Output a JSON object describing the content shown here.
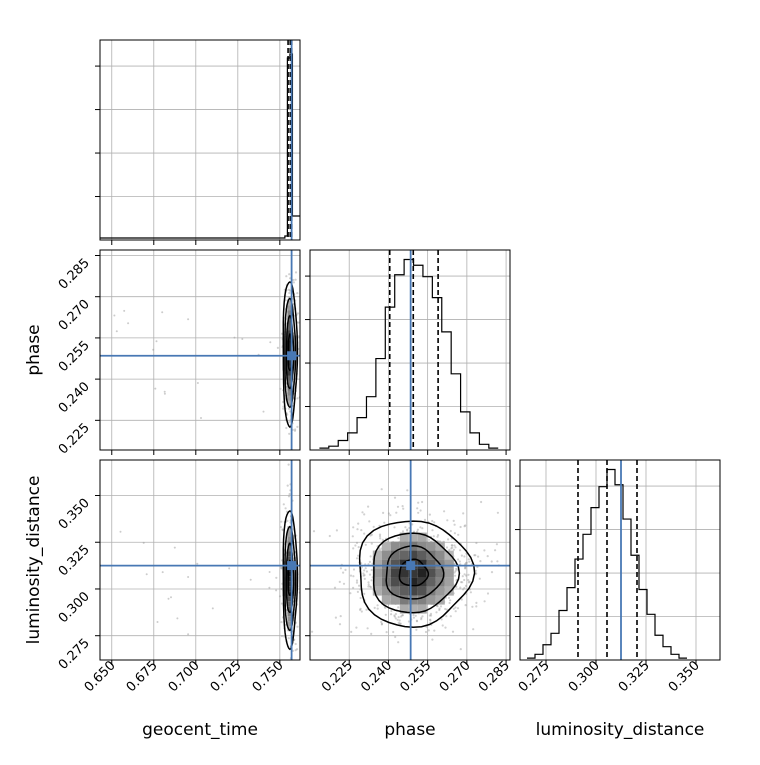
{
  "chart_data": {
    "type": "corner",
    "parameters": [
      "geocent_time",
      "phase",
      "luminosity_distance"
    ],
    "truths": {
      "geocent_time": 0.757,
      "phase": 0.2485,
      "luminosity_distance": 0.3125
    },
    "colors": {
      "truth": "#4878b4",
      "hist": "#000000",
      "grid": "#b0b0b0",
      "points": "#9a9a9a"
    },
    "grid": true,
    "panels": [
      {
        "id": "geocent_time-hist",
        "type": "histogram",
        "x_param": "geocent_time",
        "xlim": [
          0.643,
          0.762
        ],
        "ylim": [
          0,
          1
        ],
        "edges": [
          0.643,
          0.753,
          0.7545,
          0.756,
          0.7575,
          0.759,
          0.762
        ],
        "counts": [
          0.01,
          0.02,
          0.91,
          0.93,
          0.12,
          0.12
        ],
        "quantiles": [
          0.7549,
          0.7562,
          0.7571
        ],
        "truth": 0.757
      },
      {
        "id": "phase-hist",
        "type": "histogram",
        "x_param": "phase",
        "xlim": [
          0.21,
          0.2865
        ],
        "ylim": [
          0,
          1.05
        ],
        "edges": [
          0.2136,
          0.2172,
          0.2208,
          0.2244,
          0.228,
          0.2316,
          0.2352,
          0.2388,
          0.2424,
          0.246,
          0.2496,
          0.2532,
          0.2568,
          0.2604,
          0.264,
          0.2676,
          0.2712,
          0.2748,
          0.2784,
          0.282
        ],
        "counts": [
          0.01,
          0.02,
          0.05,
          0.09,
          0.17,
          0.28,
          0.48,
          0.75,
          0.92,
          1.0,
          0.97,
          0.91,
          0.8,
          0.62,
          0.4,
          0.2,
          0.09,
          0.03,
          0.01
        ],
        "quantiles": [
          0.2405,
          0.2495,
          0.259
        ],
        "truth": 0.2485
      },
      {
        "id": "luminosity_distance-hist",
        "type": "histogram",
        "x_param": "luminosity_distance",
        "xlim": [
          0.262,
          0.362
        ],
        "ylim": [
          0,
          1.05
        ],
        "edges": [
          0.2655,
          0.2695,
          0.2735,
          0.2775,
          0.2815,
          0.2855,
          0.2895,
          0.2935,
          0.2975,
          0.3015,
          0.3055,
          0.3095,
          0.3135,
          0.3175,
          0.3215,
          0.3255,
          0.3295,
          0.3335,
          0.3375,
          0.3415,
          0.3455
        ],
        "counts": [
          0.01,
          0.03,
          0.08,
          0.14,
          0.26,
          0.38,
          0.53,
          0.66,
          0.8,
          0.91,
          1.0,
          0.92,
          0.74,
          0.55,
          0.37,
          0.24,
          0.13,
          0.07,
          0.03,
          0.01
        ],
        "quantiles": [
          0.291,
          0.3055,
          0.3205
        ],
        "truth": 0.3125
      },
      {
        "id": "geocent_time-phase",
        "type": "2d-density",
        "x_param": "geocent_time",
        "y_param": "phase",
        "xlim": [
          0.643,
          0.762
        ],
        "ylim": [
          0.2142,
          0.287
        ],
        "center": [
          0.756,
          0.2495
        ],
        "spread": [
          0.0021,
          0.0132
        ],
        "contour_levels_sigma": [
          0.5,
          1.0,
          1.5,
          2.0
        ],
        "truth": [
          0.757,
          0.2485
        ]
      },
      {
        "id": "geocent_time-luminosity_distance",
        "type": "2d-density",
        "x_param": "geocent_time",
        "y_param": "luminosity_distance",
        "xlim": [
          0.643,
          0.762
        ],
        "ylim": [
          0.262,
          0.369
        ],
        "center": [
          0.756,
          0.3055
        ],
        "spread": [
          0.0021,
          0.0185
        ],
        "contour_levels_sigma": [
          0.5,
          1.0,
          1.5,
          2.0
        ],
        "truth": [
          0.757,
          0.3125
        ]
      },
      {
        "id": "phase-luminosity_distance",
        "type": "2d-density",
        "x_param": "phase",
        "y_param": "luminosity_distance",
        "xlim": [
          0.21,
          0.2865
        ],
        "ylim": [
          0.262,
          0.369
        ],
        "center": [
          0.2495,
          0.3085
        ],
        "spread": [
          0.0109,
          0.0142
        ],
        "contour_levels_sigma": [
          0.5,
          1.0,
          1.5,
          2.0
        ],
        "truth": [
          0.2485,
          0.3125
        ]
      }
    ],
    "ticks": {
      "geocent_time": {
        "values": [
          0.65,
          0.675,
          0.7,
          0.725,
          0.75
        ],
        "labels": [
          "0.650",
          "0.675",
          "0.700",
          "0.725",
          "0.750"
        ]
      },
      "phase_x": {
        "values": [
          0.225,
          0.24,
          0.255,
          0.27,
          0.285
        ],
        "labels": [
          "0.225",
          "0.240",
          "0.255",
          "0.270",
          "0.285"
        ]
      },
      "phase_y": {
        "values": [
          0.225,
          0.24,
          0.255,
          0.27,
          0.285
        ],
        "labels": [
          "0.225",
          "0.240",
          "0.255",
          "0.270",
          "0.285"
        ]
      },
      "luminosity_distance_x": {
        "values": [
          0.275,
          0.3,
          0.325,
          0.35
        ],
        "labels": [
          "0.275",
          "0.300",
          "0.325",
          "0.350"
        ]
      },
      "luminosity_distance_y": {
        "values": [
          0.275,
          0.3,
          0.325,
          0.35
        ],
        "labels": [
          "0.275",
          "0.300",
          "0.325",
          "0.350"
        ]
      }
    },
    "axis_labels": {
      "x": [
        "geocent_time",
        "phase",
        "luminosity_distance"
      ],
      "y": [
        "phase",
        "luminosity_distance"
      ]
    }
  }
}
